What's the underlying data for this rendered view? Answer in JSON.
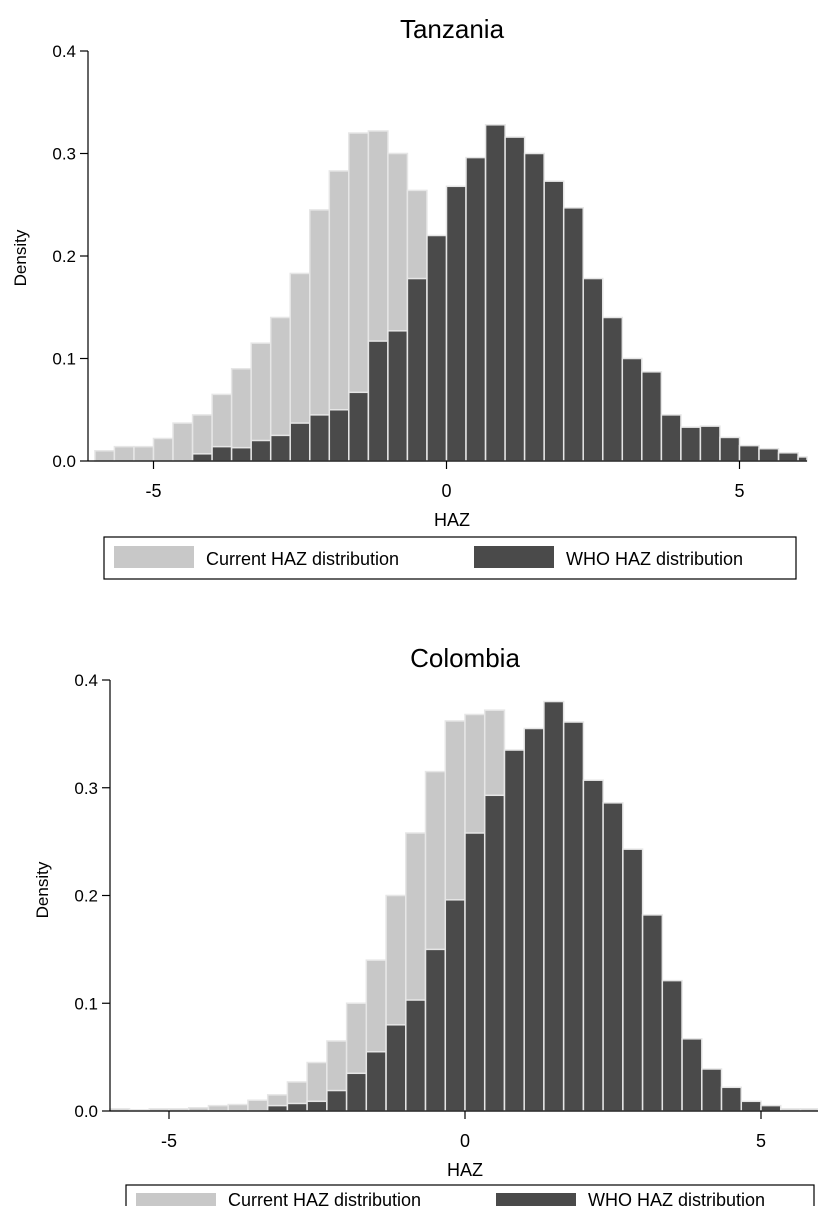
{
  "colors": {
    "current": "#c8c8c8",
    "who": "#4a4a4a",
    "bar_edge": "#e6e6e6",
    "axis": "#000000"
  },
  "chart_data": [
    {
      "type": "bar",
      "subtype": "overlaid-histogram",
      "title": "Tanzania",
      "xlabel": "HAZ",
      "ylabel": "Density",
      "xlim": [
        -6,
        6
      ],
      "ylim": [
        0,
        0.4
      ],
      "x_ticks": [
        -5,
        0,
        5
      ],
      "y_ticks": [
        "0.0",
        "0.1",
        "0.2",
        "0.3",
        "0.4"
      ],
      "grid": false,
      "legend_position": "bottom",
      "bin_width": 0.3333,
      "series": [
        {
          "name": "Current HAZ distribution",
          "color_key": "current",
          "bins": [
            {
              "x": -6.0,
              "y": 0.01
            },
            {
              "x": -5.667,
              "y": 0.014
            },
            {
              "x": -5.333,
              "y": 0.014
            },
            {
              "x": -5.0,
              "y": 0.022
            },
            {
              "x": -4.667,
              "y": 0.037
            },
            {
              "x": -4.333,
              "y": 0.045
            },
            {
              "x": -4.0,
              "y": 0.065
            },
            {
              "x": -3.667,
              "y": 0.09
            },
            {
              "x": -3.333,
              "y": 0.115
            },
            {
              "x": -3.0,
              "y": 0.14
            },
            {
              "x": -2.667,
              "y": 0.183
            },
            {
              "x": -2.333,
              "y": 0.245
            },
            {
              "x": -2.0,
              "y": 0.283
            },
            {
              "x": -1.667,
              "y": 0.32
            },
            {
              "x": -1.333,
              "y": 0.322
            },
            {
              "x": -1.0,
              "y": 0.3
            },
            {
              "x": -0.667,
              "y": 0.264
            }
          ]
        },
        {
          "name": "WHO HAZ distribution",
          "color_key": "who",
          "bins": [
            {
              "x": -4.333,
              "y": 0.007
            },
            {
              "x": -4.0,
              "y": 0.014
            },
            {
              "x": -3.667,
              "y": 0.013
            },
            {
              "x": -3.333,
              "y": 0.02
            },
            {
              "x": -3.0,
              "y": 0.025
            },
            {
              "x": -2.667,
              "y": 0.037
            },
            {
              "x": -2.333,
              "y": 0.045
            },
            {
              "x": -2.0,
              "y": 0.05
            },
            {
              "x": -1.667,
              "y": 0.067
            },
            {
              "x": -1.333,
              "y": 0.117
            },
            {
              "x": -1.0,
              "y": 0.127
            },
            {
              "x": -0.667,
              "y": 0.178
            },
            {
              "x": -0.333,
              "y": 0.22
            },
            {
              "x": 0.0,
              "y": 0.268
            },
            {
              "x": 0.333,
              "y": 0.296
            },
            {
              "x": 0.667,
              "y": 0.328
            },
            {
              "x": 1.0,
              "y": 0.316
            },
            {
              "x": 1.333,
              "y": 0.3
            },
            {
              "x": 1.667,
              "y": 0.273
            },
            {
              "x": 2.0,
              "y": 0.247
            },
            {
              "x": 2.333,
              "y": 0.178
            },
            {
              "x": 2.667,
              "y": 0.14
            },
            {
              "x": 3.0,
              "y": 0.1
            },
            {
              "x": 3.333,
              "y": 0.087
            },
            {
              "x": 3.667,
              "y": 0.045
            },
            {
              "x": 4.0,
              "y": 0.033
            },
            {
              "x": 4.333,
              "y": 0.034
            },
            {
              "x": 4.667,
              "y": 0.023
            },
            {
              "x": 5.0,
              "y": 0.015
            },
            {
              "x": 5.333,
              "y": 0.012
            },
            {
              "x": 5.667,
              "y": 0.008
            },
            {
              "x": 6.0,
              "y": 0.004
            },
            {
              "x": 6.333,
              "y": 0.002
            },
            {
              "x": 6.667,
              "y": 0.003
            },
            {
              "x": 7.333,
              "y": 0.003
            },
            {
              "x": 8.0,
              "y": 0.003
            }
          ]
        }
      ]
    },
    {
      "type": "bar",
      "subtype": "overlaid-histogram",
      "title": "Colombia",
      "xlabel": "HAZ",
      "ylabel": "Density",
      "xlim": [
        -6,
        6
      ],
      "ylim": [
        0,
        0.4
      ],
      "x_ticks": [
        -5,
        0,
        5
      ],
      "y_ticks": [
        "0.0",
        "0.1",
        "0.2",
        "0.3",
        "0.4"
      ],
      "grid": false,
      "legend_position": "bottom",
      "bin_width": 0.3333,
      "series": [
        {
          "name": "Current HAZ distribution",
          "color_key": "current",
          "bins": [
            {
              "x": -6.0,
              "y": 0.002
            },
            {
              "x": -5.667,
              "y": 0.001
            },
            {
              "x": -5.333,
              "y": 0.002
            },
            {
              "x": -5.0,
              "y": 0.002
            },
            {
              "x": -4.667,
              "y": 0.003
            },
            {
              "x": -4.333,
              "y": 0.005
            },
            {
              "x": -4.0,
              "y": 0.006
            },
            {
              "x": -3.667,
              "y": 0.01
            },
            {
              "x": -3.333,
              "y": 0.015
            },
            {
              "x": -3.0,
              "y": 0.027
            },
            {
              "x": -2.667,
              "y": 0.045
            },
            {
              "x": -2.333,
              "y": 0.065
            },
            {
              "x": -2.0,
              "y": 0.1
            },
            {
              "x": -1.667,
              "y": 0.14
            },
            {
              "x": -1.333,
              "y": 0.2
            },
            {
              "x": -1.0,
              "y": 0.258
            },
            {
              "x": -0.667,
              "y": 0.315
            },
            {
              "x": -0.333,
              "y": 0.362
            },
            {
              "x": 0.0,
              "y": 0.368
            },
            {
              "x": 0.333,
              "y": 0.372
            },
            {
              "x": 1.0,
              "y": 0.01
            },
            {
              "x": 1.333,
              "y": 0.008
            },
            {
              "x": 1.667,
              "y": 0.006
            },
            {
              "x": 2.0,
              "y": 0.004
            },
            {
              "x": 2.333,
              "y": 0.004
            },
            {
              "x": 2.667,
              "y": 0.003
            },
            {
              "x": 3.0,
              "y": 0.003
            },
            {
              "x": 3.333,
              "y": 0.003
            },
            {
              "x": 3.667,
              "y": 0.002
            },
            {
              "x": 4.0,
              "y": 0.002
            },
            {
              "x": 4.333,
              "y": 0.002
            },
            {
              "x": 4.667,
              "y": 0.002
            },
            {
              "x": 5.0,
              "y": 0.002
            },
            {
              "x": 5.333,
              "y": 0.002
            },
            {
              "x": 5.667,
              "y": 0.002
            },
            {
              "x": 6.0,
              "y": 0.002
            }
          ]
        },
        {
          "name": "WHO HAZ distribution",
          "color_key": "who",
          "bins": [
            {
              "x": -3.333,
              "y": 0.005
            },
            {
              "x": -3.0,
              "y": 0.007
            },
            {
              "x": -2.667,
              "y": 0.009
            },
            {
              "x": -2.333,
              "y": 0.019
            },
            {
              "x": -2.0,
              "y": 0.035
            },
            {
              "x": -1.667,
              "y": 0.055
            },
            {
              "x": -1.333,
              "y": 0.08
            },
            {
              "x": -1.0,
              "y": 0.103
            },
            {
              "x": -0.667,
              "y": 0.15
            },
            {
              "x": -0.333,
              "y": 0.196
            },
            {
              "x": 0.0,
              "y": 0.258
            },
            {
              "x": 0.333,
              "y": 0.293
            },
            {
              "x": 0.667,
              "y": 0.335
            },
            {
              "x": 1.0,
              "y": 0.355
            },
            {
              "x": 1.333,
              "y": 0.38
            },
            {
              "x": 1.667,
              "y": 0.361
            },
            {
              "x": 2.0,
              "y": 0.307
            },
            {
              "x": 2.333,
              "y": 0.286
            },
            {
              "x": 2.667,
              "y": 0.243
            },
            {
              "x": 3.0,
              "y": 0.182
            },
            {
              "x": 3.333,
              "y": 0.121
            },
            {
              "x": 3.667,
              "y": 0.067
            },
            {
              "x": 4.0,
              "y": 0.039
            },
            {
              "x": 4.333,
              "y": 0.022
            },
            {
              "x": 4.667,
              "y": 0.009
            },
            {
              "x": 5.0,
              "y": 0.005
            }
          ]
        }
      ]
    }
  ]
}
